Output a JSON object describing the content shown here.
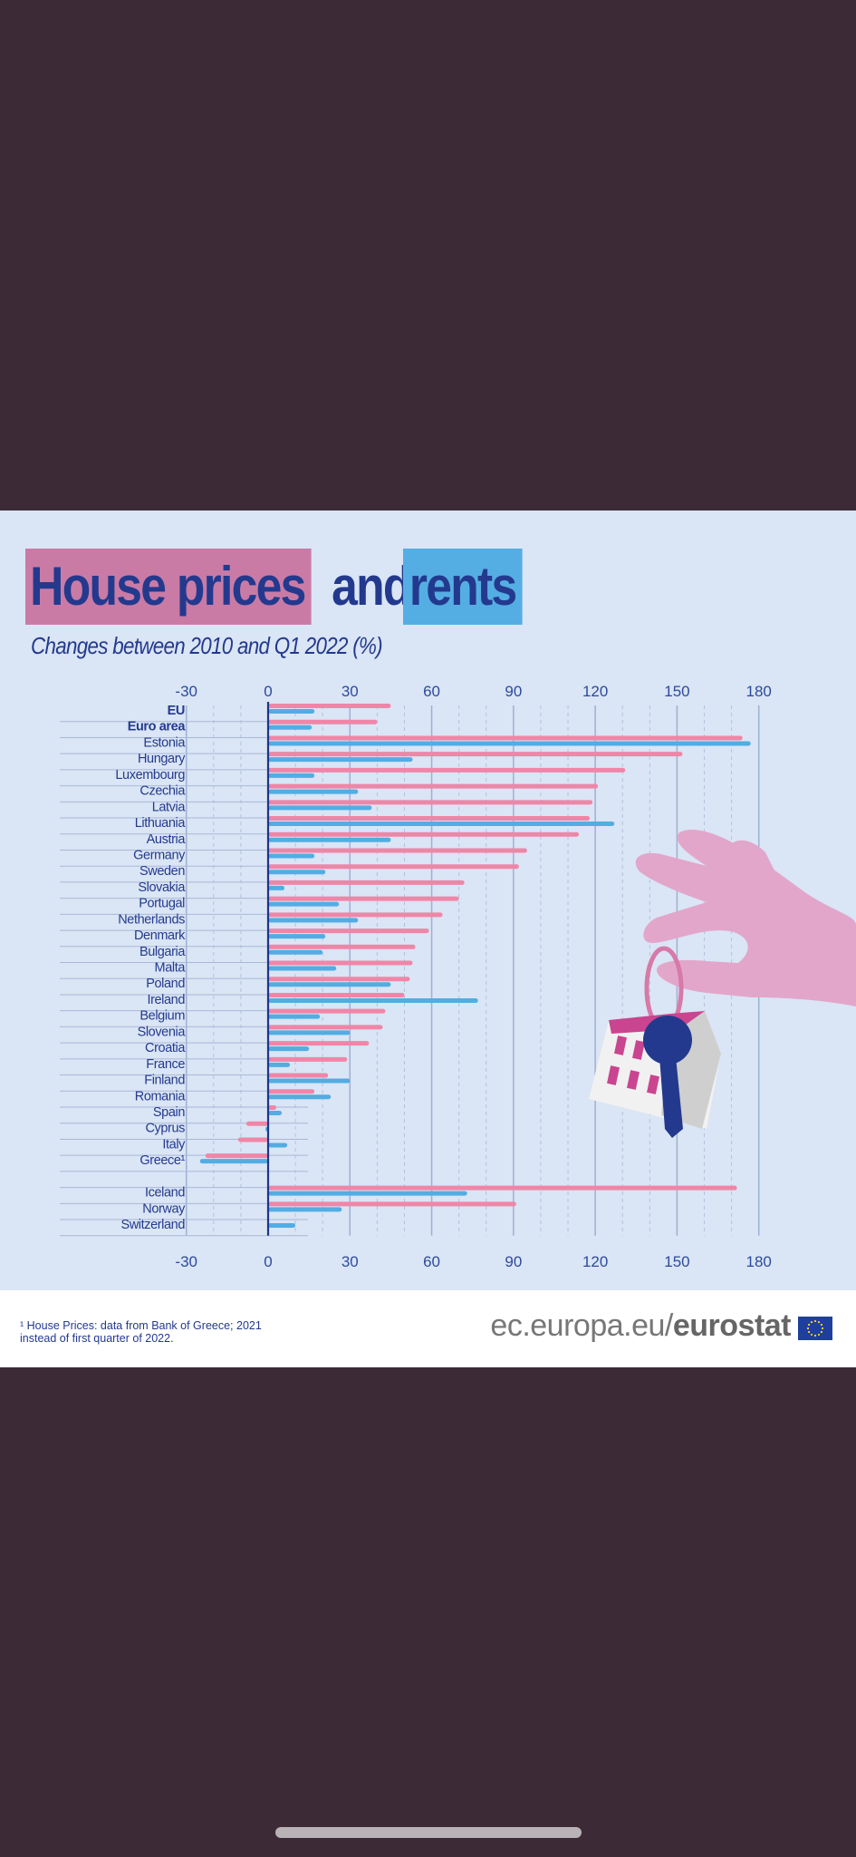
{
  "header": {
    "title_part1": "House prices",
    "title_part2": "and",
    "title_part3": "rents",
    "subtitle": "Changes between 2010 and Q1 2022 (%)"
  },
  "footer": {
    "footnote_line1": "¹ House Prices: data from Bank of Greece; 2021",
    "footnote_line2": "instead of first quarter of 2022.",
    "brand_prefix": "ec.europa.eu/",
    "brand_name": "eurostat",
    "flag_icon": "eu-flag-icon"
  },
  "colors": {
    "prices": "#ef86a8",
    "rents": "#52ade2",
    "title_prices_bg": "#c97ba6",
    "title_rents_bg": "#55aee3",
    "text": "#23398e"
  },
  "illustration": {
    "icon": "hand-holding-house-keychain-icon"
  },
  "chart_data": {
    "type": "bar",
    "orientation": "horizontal",
    "title": "House prices and rents",
    "subtitle": "Changes between 2010 and Q1 2022 (%)",
    "xlabel": "",
    "ylabel": "",
    "xlim": [
      -30,
      180
    ],
    "xticks": [
      -30,
      0,
      30,
      60,
      90,
      120,
      150,
      180
    ],
    "grid": true,
    "legend": "title-colors (pink = house prices, blue = rents)",
    "categories": [
      "EU",
      "Euro area",
      "Estonia",
      "Hungary",
      "Luxembourg",
      "Czechia",
      "Latvia",
      "Lithuania",
      "Austria",
      "Germany",
      "Sweden",
      "Slovakia",
      "Portugal",
      "Netherlands",
      "Denmark",
      "Bulgaria",
      "Malta",
      "Poland",
      "Ireland",
      "Belgium",
      "Slovenia",
      "Croatia",
      "France",
      "Finland",
      "Romania",
      "Spain",
      "Cyprus",
      "Italy",
      "Greece¹",
      "",
      "Iceland",
      "Norway",
      "Switzerland"
    ],
    "bold_categories": [
      "EU",
      "Euro area"
    ],
    "series": [
      {
        "name": "House prices",
        "color": "#ef86a8",
        "values": [
          45,
          40,
          174,
          152,
          131,
          121,
          119,
          118,
          114,
          95,
          92,
          72,
          70,
          64,
          59,
          54,
          53,
          52,
          50,
          43,
          42,
          37,
          29,
          22,
          17,
          3,
          -8,
          -11,
          -23,
          null,
          172,
          91,
          null
        ]
      },
      {
        "name": "Rents",
        "color": "#52ade2",
        "values": [
          17,
          16,
          177,
          53,
          17,
          33,
          38,
          127,
          45,
          17,
          21,
          6,
          26,
          33,
          21,
          20,
          25,
          45,
          77,
          19,
          30,
          15,
          8,
          30,
          23,
          5,
          -1,
          7,
          -25,
          null,
          73,
          27,
          10
        ]
      }
    ]
  }
}
